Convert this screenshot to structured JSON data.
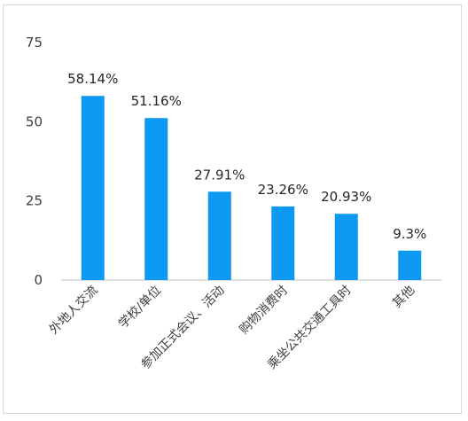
{
  "chart_data": {
    "type": "bar",
    "title": "",
    "xlabel": "",
    "ylabel": "",
    "ylim": [
      0,
      75
    ],
    "yticks": [
      0,
      25,
      50,
      75
    ],
    "grid": false,
    "legend": "none",
    "bar_color": "#0d98f2",
    "categories": [
      "外地人交流",
      "学校/单位",
      "参加正式会议、活动",
      "购物消费时",
      "乘坐公共交通工具时",
      "其他"
    ],
    "values": [
      58.14,
      51.16,
      27.91,
      23.26,
      20.93,
      9.3
    ],
    "data_labels": [
      "58.14%",
      "51.16%",
      "27.91%",
      "23.26%",
      "20.93%",
      "9.3%"
    ]
  }
}
